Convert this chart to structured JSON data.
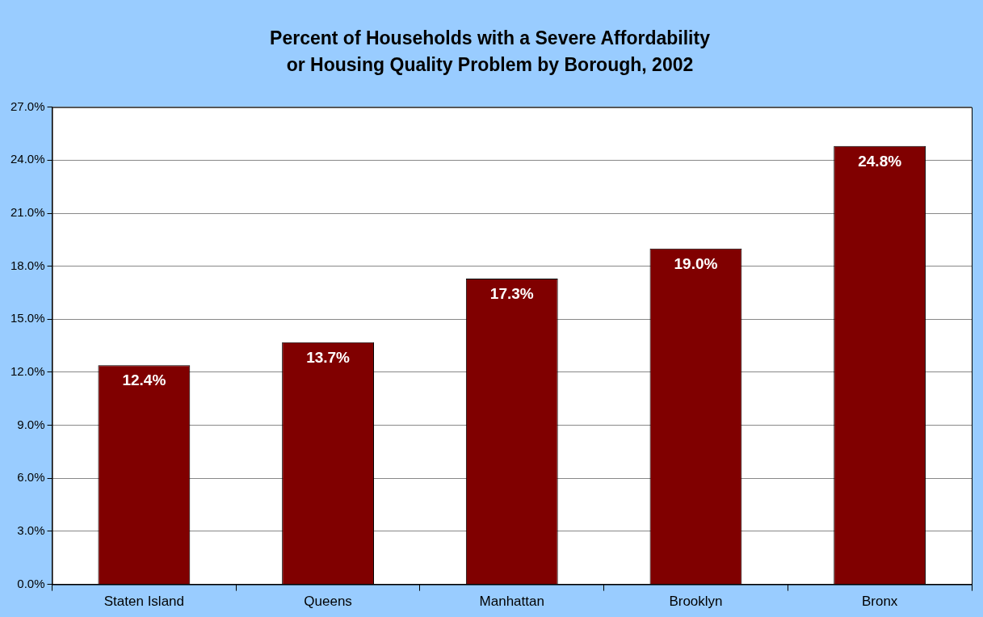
{
  "chart_data": {
    "type": "bar",
    "title": "Percent of Households with a Severe Affordability or Housing Quality Problem by Borough, 2002",
    "categories": [
      "Staten Island",
      "Queens",
      "Manhattan",
      "Brooklyn",
      "Bronx"
    ],
    "values": [
      12.4,
      13.7,
      17.3,
      19.0,
      24.8
    ],
    "value_labels": [
      "12.4%",
      "13.7%",
      "17.3%",
      "19.0%",
      "24.8%"
    ],
    "color": "#800000",
    "ylim": [
      0,
      27
    ],
    "yticks": [
      {
        "value": 0,
        "label": "0.0%"
      },
      {
        "value": 3,
        "label": "3.0%"
      },
      {
        "value": 6,
        "label": "6.0%"
      },
      {
        "value": 9,
        "label": "9.0%"
      },
      {
        "value": 12,
        "label": "12.0%"
      },
      {
        "value": 15,
        "label": "15.0%"
      },
      {
        "value": 18,
        "label": "18.0%"
      },
      {
        "value": 21,
        "label": "21.0%"
      },
      {
        "value": 24,
        "label": "24.0%"
      },
      {
        "value": 27,
        "label": "27.0%"
      }
    ],
    "grid": "y",
    "legend": false
  }
}
